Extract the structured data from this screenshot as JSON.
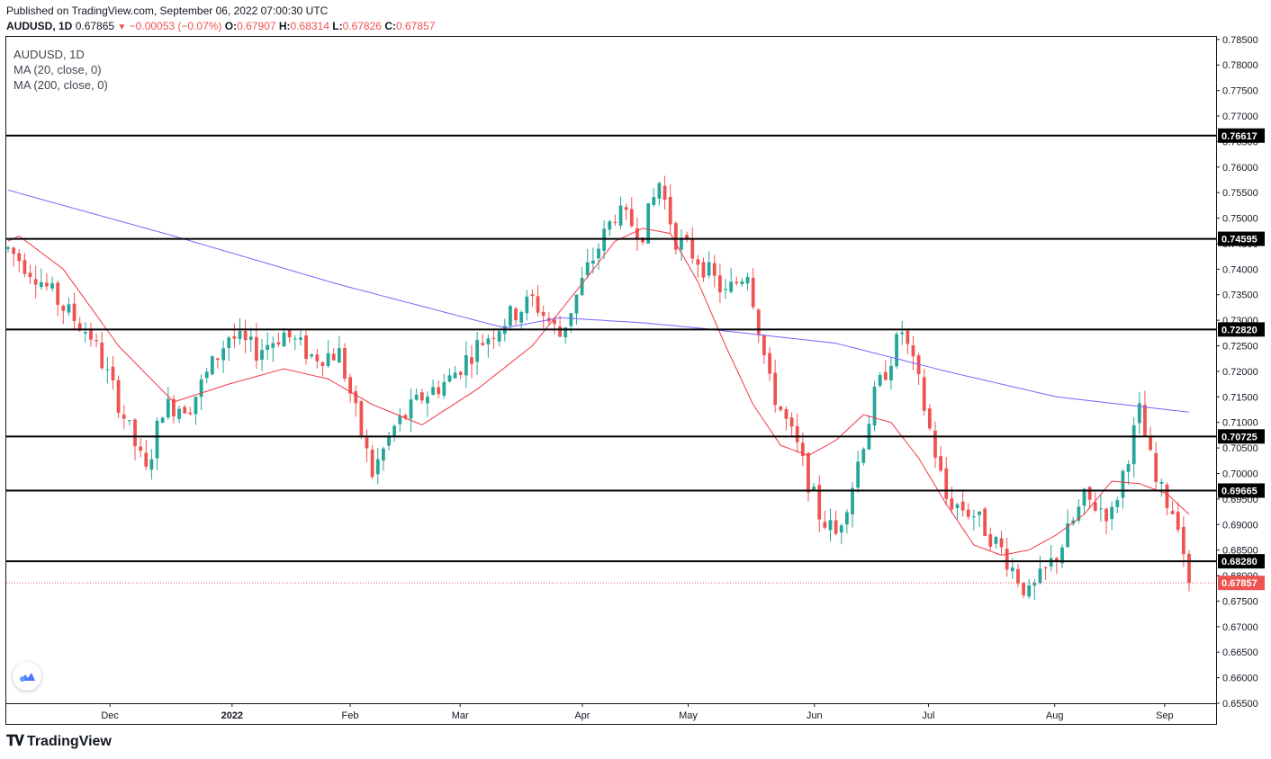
{
  "header": {
    "published": "Published on TradingView.com, September 06, 2022 07:00:30 UTC",
    "symbol": "AUDUSD, 1D",
    "last": "0.67865",
    "change": "−0.00053 (−0.07%)",
    "o_label": "O:",
    "o_value": "0.67907",
    "h_label": "H:",
    "h_value": "0.68314",
    "l_label": "L:",
    "l_value": "0.67826",
    "c_label": "C:",
    "c_value": "0.67857"
  },
  "legend": {
    "title": "AUDUSD, 1D",
    "ma20": "MA (20, close, 0)",
    "ma200": "MA (200, close, 0)"
  },
  "footer": {
    "brand": "TradingView"
  },
  "colors": {
    "up": "#26a69a",
    "down": "#ef5350",
    "ma20": "#f23645",
    "ma200": "#7b61ff",
    "level": "#000000",
    "grid": "#e0e3eb",
    "text": "#131722"
  },
  "chart_data": {
    "type": "candlestick",
    "title": "AUDUSD, 1D",
    "ylim": [
      0.655,
      0.7855
    ],
    "y_ticks": [
      "0.78500",
      "0.78000",
      "0.77500",
      "0.77000",
      "0.76500",
      "0.76000",
      "0.75500",
      "0.75000",
      "0.74500",
      "0.74000",
      "0.73500",
      "0.73000",
      "0.72500",
      "0.72000",
      "0.71500",
      "0.71000",
      "0.70500",
      "0.70000",
      "0.69500",
      "0.69000",
      "0.68500",
      "0.68000",
      "0.67500",
      "0.67000",
      "0.66500",
      "0.66000",
      "0.65500"
    ],
    "x_ticks": [
      "Dec",
      "2022",
      "Feb",
      "Mar",
      "Apr",
      "May",
      "Jun",
      "Jul",
      "Aug",
      "Sep"
    ],
    "horizontal_levels": [
      0.76617,
      0.74595,
      0.7282,
      0.70725,
      0.69665,
      0.6828
    ],
    "current_price": 0.67857,
    "ma20_anchors": [
      [
        0,
        0.7455
      ],
      [
        2,
        0.7465
      ],
      [
        10,
        0.74
      ],
      [
        20,
        0.725
      ],
      [
        30,
        0.714
      ],
      [
        40,
        0.7175
      ],
      [
        50,
        0.7205
      ],
      [
        58,
        0.7185
      ],
      [
        66,
        0.7135
      ],
      [
        75,
        0.7095
      ],
      [
        85,
        0.7165
      ],
      [
        95,
        0.725
      ],
      [
        105,
        0.7385
      ],
      [
        110,
        0.7455
      ],
      [
        115,
        0.748
      ],
      [
        120,
        0.747
      ],
      [
        125,
        0.7375
      ],
      [
        130,
        0.725
      ],
      [
        135,
        0.7135
      ],
      [
        140,
        0.7055
      ],
      [
        145,
        0.7035
      ],
      [
        150,
        0.7065
      ],
      [
        155,
        0.7115
      ],
      [
        160,
        0.71
      ],
      [
        165,
        0.703
      ],
      [
        170,
        0.694
      ],
      [
        175,
        0.686
      ],
      [
        180,
        0.684
      ],
      [
        185,
        0.685
      ],
      [
        190,
        0.688
      ],
      [
        195,
        0.692
      ],
      [
        200,
        0.6985
      ],
      [
        205,
        0.698
      ],
      [
        210,
        0.696
      ],
      [
        214,
        0.692
      ]
    ],
    "ma200_anchors": [
      [
        0,
        0.7555
      ],
      [
        30,
        0.7465
      ],
      [
        60,
        0.737
      ],
      [
        90,
        0.7285
      ],
      [
        100,
        0.7305
      ],
      [
        115,
        0.7295
      ],
      [
        125,
        0.7285
      ],
      [
        150,
        0.7255
      ],
      [
        170,
        0.72
      ],
      [
        190,
        0.715
      ],
      [
        214,
        0.712
      ]
    ],
    "candle_anchors": [
      [
        0,
        0.744
      ],
      [
        5,
        0.739
      ],
      [
        10,
        0.7325
      ],
      [
        15,
        0.727
      ],
      [
        20,
        0.714
      ],
      [
        25,
        0.7
      ],
      [
        28,
        0.713
      ],
      [
        33,
        0.7135
      ],
      [
        40,
        0.727
      ],
      [
        45,
        0.724
      ],
      [
        50,
        0.7275
      ],
      [
        55,
        0.723
      ],
      [
        60,
        0.7235
      ],
      [
        66,
        0.7
      ],
      [
        70,
        0.709
      ],
      [
        75,
        0.715
      ],
      [
        80,
        0.7185
      ],
      [
        85,
        0.725
      ],
      [
        90,
        0.73
      ],
      [
        95,
        0.734
      ],
      [
        100,
        0.727
      ],
      [
        105,
        0.74
      ],
      [
        110,
        0.751
      ],
      [
        115,
        0.7475
      ],
      [
        118,
        0.757
      ],
      [
        121,
        0.746
      ],
      [
        125,
        0.742
      ],
      [
        130,
        0.735
      ],
      [
        134,
        0.74
      ],
      [
        138,
        0.7175
      ],
      [
        143,
        0.705
      ],
      [
        147,
        0.692
      ],
      [
        150,
        0.688
      ],
      [
        153,
        0.698
      ],
      [
        157,
        0.715
      ],
      [
        162,
        0.728
      ],
      [
        165,
        0.7175
      ],
      [
        170,
        0.695
      ],
      [
        175,
        0.692
      ],
      [
        180,
        0.685
      ],
      [
        185,
        0.676
      ],
      [
        190,
        0.684
      ],
      [
        195,
        0.695
      ],
      [
        200,
        0.692
      ],
      [
        205,
        0.712
      ],
      [
        208,
        0.698
      ],
      [
        212,
        0.691
      ],
      [
        214,
        0.6786
      ]
    ],
    "series_length": 215
  }
}
